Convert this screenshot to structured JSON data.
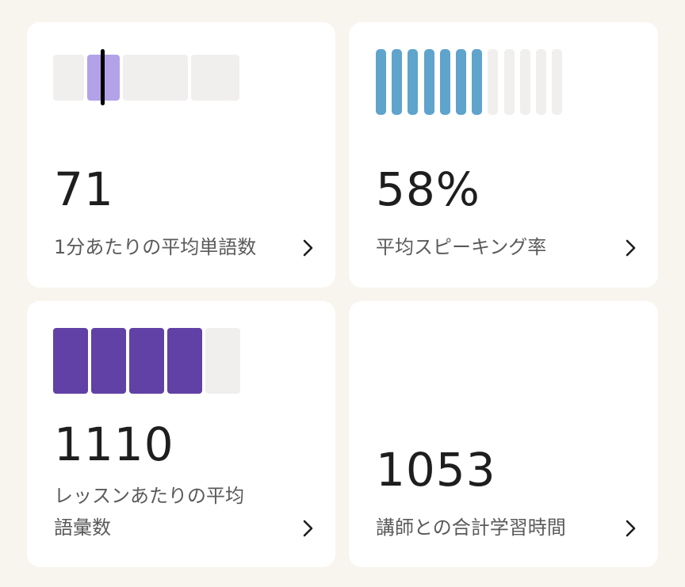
{
  "colors": {
    "background": "#f8f4ee",
    "wpm_fill": "#b3a2e8",
    "speaking_fill": "#5ea4cc",
    "vocab_fill": "#6141a5",
    "empty": "#f0efee",
    "marker": "#000000"
  },
  "cards": [
    {
      "value": "71",
      "label": "1分あたりの平均単語数",
      "icon": "chevron-right-icon",
      "gauge": {
        "segments": 4,
        "highlighted_segment": 2
      }
    },
    {
      "value": "58%",
      "label": "平均スピーキング率",
      "icon": "chevron-right-icon",
      "gauge": {
        "bars": 12,
        "filled": 7
      }
    },
    {
      "value": "1110",
      "label_line1": "レッスンあたりの平均",
      "label_line2": "語彙数",
      "icon": "chevron-right-icon",
      "gauge": {
        "segments": 5,
        "filled": 4
      }
    },
    {
      "value": "1053",
      "label": "講師との合計学習時間",
      "icon": "chevron-right-icon"
    }
  ]
}
